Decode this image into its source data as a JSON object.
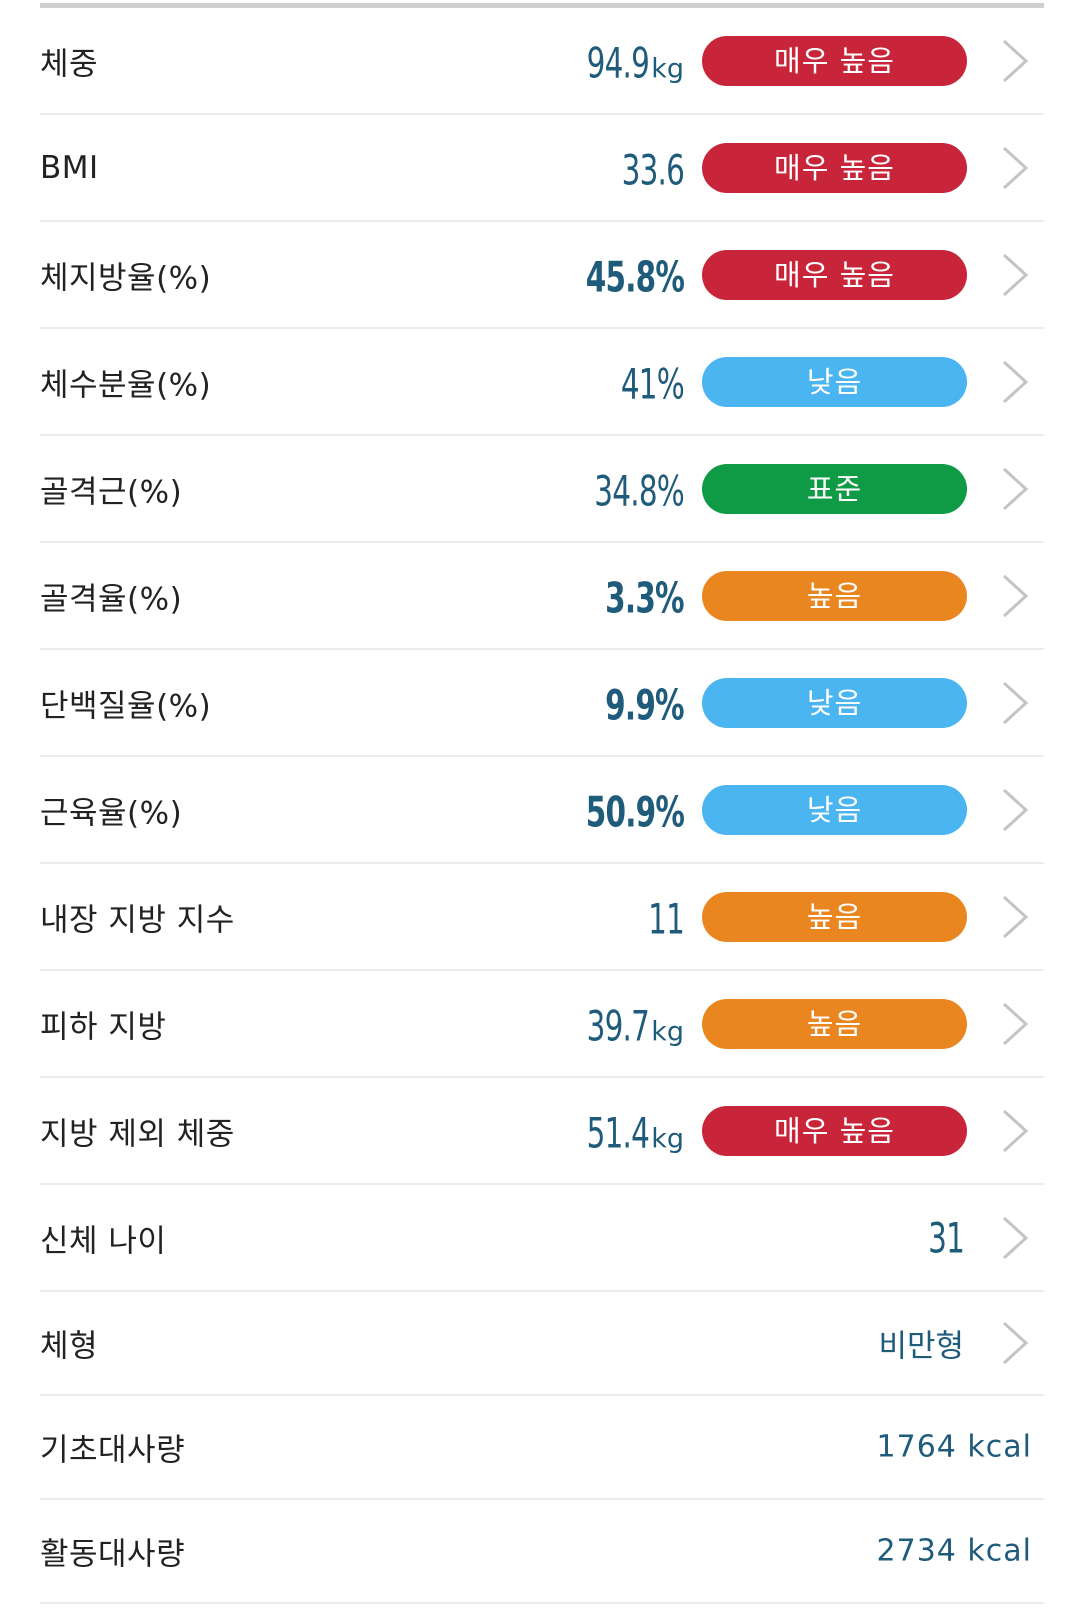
{
  "icons": {
    "chevron": "chevron-right-icon"
  },
  "colors": {
    "very_high": "#c8253a",
    "low": "#4ab5f0",
    "standard": "#0f9a45",
    "high": "#ea8620",
    "value_text": "#1f5b7a"
  },
  "metrics": [
    {
      "label": "체중",
      "value": "94.9",
      "unit": "kg",
      "status": "매우 높음"
    },
    {
      "label": "BMI",
      "value": "33.6",
      "unit": "",
      "status": "매우 높음"
    },
    {
      "label": "체지방율(%)",
      "value": "45.8%",
      "unit": "",
      "status": "매우 높음"
    },
    {
      "label": "체수분율(%)",
      "value": "41%",
      "unit": "",
      "status": "낮음"
    },
    {
      "label": "골격근(%)",
      "value": "34.8%",
      "unit": "",
      "status": "표준"
    },
    {
      "label": "골격율(%)",
      "value": "3.3%",
      "unit": "",
      "status": "높음"
    },
    {
      "label": "단백질율(%)",
      "value": "9.9%",
      "unit": "",
      "status": "낮음"
    },
    {
      "label": "근육율(%)",
      "value": "50.9%",
      "unit": "",
      "status": "낮음"
    },
    {
      "label": "내장 지방 지수",
      "value": "11",
      "unit": "",
      "status": "높음"
    },
    {
      "label": "피하 지방",
      "value": "39.7",
      "unit": "kg",
      "status": "높음"
    },
    {
      "label": "지방 제외 체중",
      "value": "51.4",
      "unit": "kg",
      "status": "매우 높음"
    }
  ],
  "body_age": {
    "label": "신체 나이",
    "value": "31"
  },
  "body_type": {
    "label": "체형",
    "value": "비만형"
  },
  "bmr": {
    "label": "기초대사량",
    "value": "1764 kcal"
  },
  "amr": {
    "label": "활동대사량",
    "value": "2734 kcal"
  }
}
